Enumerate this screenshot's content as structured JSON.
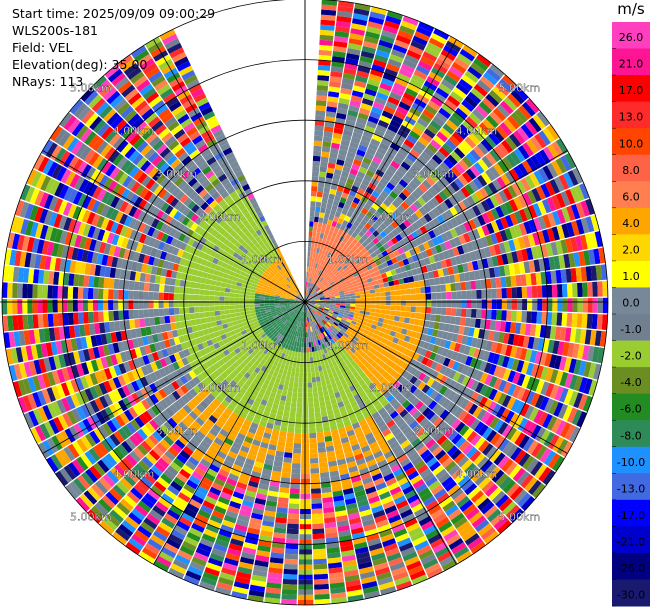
{
  "info": {
    "start_time": "Start time: 2025/09/09 09:00:29",
    "site": "WLS200s-181",
    "field": "Field: VEL",
    "elevation": "Elevation(deg): 35.00",
    "nrays": "NRays: 113"
  },
  "chart_data": {
    "type": "heatmap",
    "projection": "polar-ppi",
    "colorbar": {
      "unit": "m/s",
      "ticks": [
        "26.0",
        "21.0",
        "17.0",
        "13.0",
        "10.0",
        "8.0",
        "6.0",
        "4.0",
        "2.0",
        "1.0",
        "0.0",
        "-1.0",
        "-2.0",
        "-4.0",
        "-6.0",
        "-8.0",
        "-10.0",
        "-13.0",
        "-17.0",
        "-21.0",
        "-26.0",
        "-30.0"
      ],
      "colors": [
        "#ff3fbf",
        "#ff1493",
        "#ff0000",
        "#ff2a2a",
        "#ff4500",
        "#ff6347",
        "#ff7f50",
        "#ffa500",
        "#ffd700",
        "#ffff00",
        "#778899",
        "#708090",
        "#9acd32",
        "#6b8e23",
        "#228b22",
        "#2e8b57",
        "#1e90ff",
        "#4169e1",
        "#0000ff",
        "#0000cd",
        "#000080",
        "#191970"
      ]
    },
    "range_rings": [
      {
        "range": 1.0,
        "label": "1.00km"
      },
      {
        "range": 2.0,
        "label": "2.00km"
      },
      {
        "range": 3.0,
        "label": "3.00km"
      },
      {
        "range": 4.0,
        "label": "4.00km"
      },
      {
        "range": 5.0,
        "label": "5.00km"
      }
    ],
    "max_range_km": 5.0,
    "nrays": 113,
    "data_gaps_deg": [
      [
        0,
        3.2
      ],
      [
        336,
        360
      ]
    ],
    "velocity_regions": [
      {
        "azimuth_from": 5,
        "azimuth_to": 80,
        "range_from": 0.3,
        "range_to": 1.3,
        "value": 6.0
      },
      {
        "azimuth_from": 80,
        "azimuth_to": 140,
        "range_from": 0.8,
        "range_to": 2.0,
        "value": 4.0
      },
      {
        "azimuth_from": 180,
        "azimuth_to": 280,
        "range_from": 0.0,
        "range_to": 0.8,
        "value": -8.0
      },
      {
        "azimuth_from": 140,
        "azimuth_to": 330,
        "range_from": 0.8,
        "range_to": 2.2,
        "value": -2.0
      },
      {
        "azimuth_from": 280,
        "azimuth_to": 336,
        "range_from": 0.2,
        "range_to": 1.0,
        "value": 4.0
      },
      {
        "azimuth_from": 150,
        "azimuth_to": 230,
        "range_from": 2.0,
        "range_to": 3.2,
        "value": 4.0
      }
    ]
  }
}
